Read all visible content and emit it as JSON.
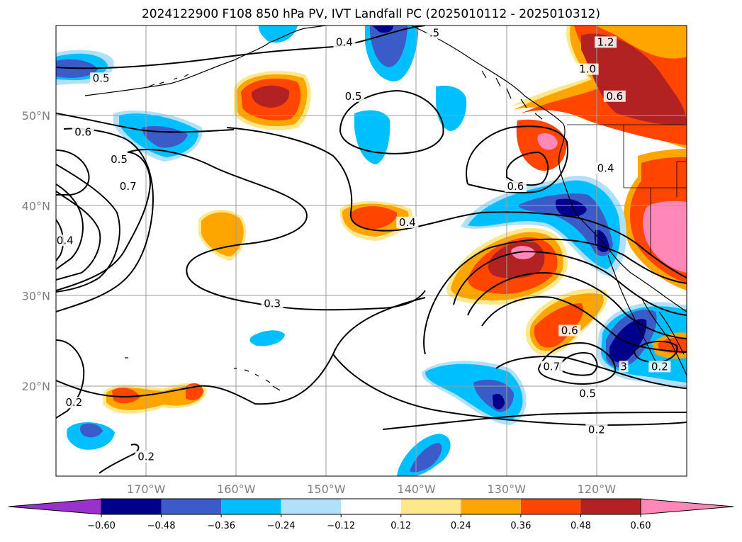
{
  "title": "2024122900 F108 850 hPa PV, IVT Landfall PC (2025010112 - 2025010312)",
  "map": {
    "projection": "plate-carree",
    "lon_range": [
      -180,
      -110
    ],
    "lat_range": [
      10,
      60
    ],
    "grid": true,
    "lat_ticks": [
      {
        "value": 50,
        "label": "50°N"
      },
      {
        "value": 40,
        "label": "40°N"
      },
      {
        "value": 30,
        "label": "30°N"
      },
      {
        "value": 20,
        "label": "20°N"
      }
    ],
    "lon_ticks": [
      {
        "value": -170,
        "label": "170°W"
      },
      {
        "value": -160,
        "label": "160°W"
      },
      {
        "value": -150,
        "label": "150°W"
      },
      {
        "value": -140,
        "label": "140°W"
      },
      {
        "value": -130,
        "label": "130°W"
      },
      {
        "value": -120,
        "label": "120°W"
      }
    ],
    "contour_labels": [
      {
        "text": "0.5",
        "lon": -175,
        "lat": 54
      },
      {
        "text": "0.4",
        "lon": -148,
        "lat": 58
      },
      {
        "text": ".5",
        "lon": -138,
        "lat": 59
      },
      {
        "text": "1.2",
        "lon": -119,
        "lat": 58
      },
      {
        "text": "1.0",
        "lon": -121,
        "lat": 55
      },
      {
        "text": "0.6",
        "lon": -118,
        "lat": 52
      },
      {
        "text": "0.5",
        "lon": -147,
        "lat": 52
      },
      {
        "text": "0.6",
        "lon": -177,
        "lat": 48
      },
      {
        "text": "0.5",
        "lon": -173,
        "lat": 45
      },
      {
        "text": "0.7",
        "lon": -172,
        "lat": 42
      },
      {
        "text": "0.4",
        "lon": -179,
        "lat": 36
      },
      {
        "text": "0.4",
        "lon": -119,
        "lat": 44
      },
      {
        "text": "0.6",
        "lon": -129,
        "lat": 42
      },
      {
        "text": "0.4",
        "lon": -141,
        "lat": 38
      },
      {
        "text": "0.3",
        "lon": -156,
        "lat": 29
      },
      {
        "text": "0.6",
        "lon": -123,
        "lat": 26
      },
      {
        "text": "0.7",
        "lon": -125,
        "lat": 22
      },
      {
        "text": "3",
        "lon": -117,
        "lat": 22
      },
      {
        "text": "0.2",
        "lon": -113,
        "lat": 22
      },
      {
        "text": "0.5",
        "lon": -121,
        "lat": 19
      },
      {
        "text": "0.2",
        "lon": -178,
        "lat": 18
      },
      {
        "text": "0.2",
        "lon": -120,
        "lat": 15
      },
      {
        "text": "0.2",
        "lon": -170,
        "lat": 12
      }
    ]
  },
  "colorbar": {
    "levels": [
      "−0.60",
      "−0.48",
      "−0.36",
      "−0.24",
      "−0.12",
      "0.12",
      "0.24",
      "0.36",
      "0.48",
      "0.60"
    ],
    "colors": [
      "#9932CC",
      "#00008B",
      "#3A5BC8",
      "#00BFFF",
      "#B0E0FA",
      "#FFFFFF",
      "#FFE88C",
      "#FFA500",
      "#FF4500",
      "#B22222",
      "#FF88B8"
    ],
    "extend": "both"
  },
  "fill_colors": {
    "neg_strong": "#00008B",
    "neg_mid": "#3A5BC8",
    "neg_weak": "#00BFFF",
    "neg_faint": "#B0E0FA",
    "pos_faint": "#FFE88C",
    "pos_weak": "#FFA500",
    "pos_mid": "#FF4500",
    "pos_strong": "#B22222",
    "pos_max": "#FF88B8"
  }
}
